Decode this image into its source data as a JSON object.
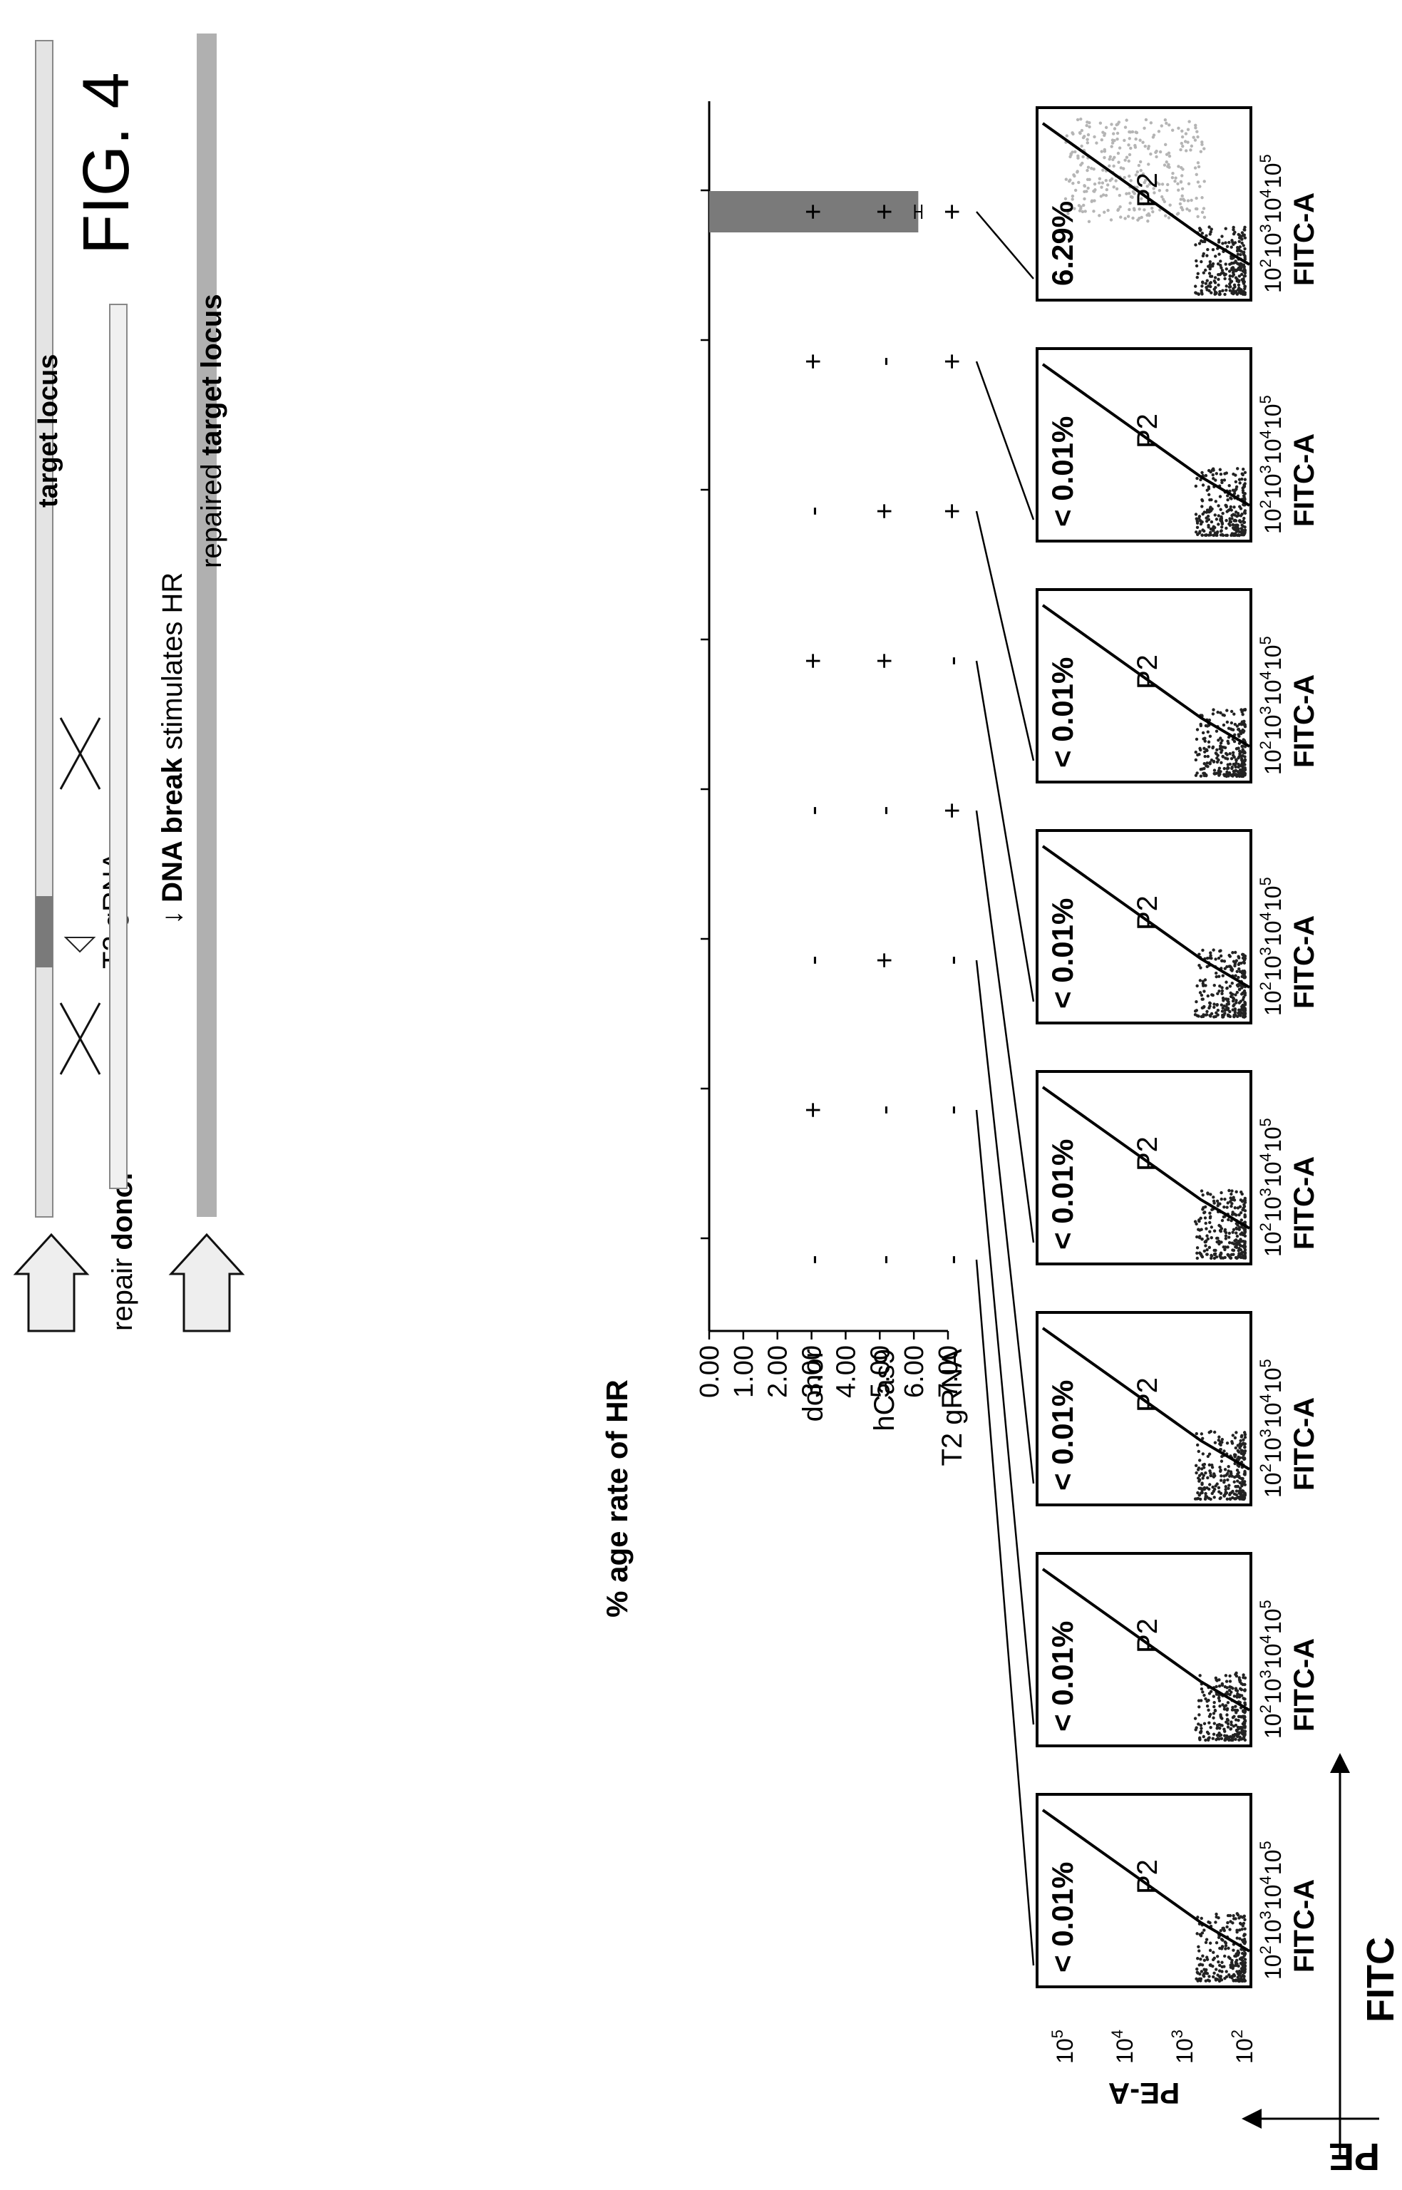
{
  "figure_label": "FIG. 4",
  "schematic": {
    "target_locus": "target locus",
    "repair_prefix": "repair ",
    "repair_bold": "donor",
    "grna_label": "T2 gRNA",
    "break_arrow": "↓",
    "break_bold": "DNA break",
    "break_suffix": " stimulates HR",
    "repaired_prefix": "repaired ",
    "repaired_bold": "target locus"
  },
  "conditions": {
    "row_labels": [
      "donor",
      "hCas9",
      "T2 gRNA"
    ],
    "values": [
      [
        "-",
        "-",
        "-"
      ],
      [
        "+",
        "-",
        "-"
      ],
      [
        "-",
        "+",
        "-"
      ],
      [
        "-",
        "-",
        "+"
      ],
      [
        "+",
        "+",
        "-"
      ],
      [
        "-",
        "+",
        "+"
      ],
      [
        "+",
        "-",
        "+"
      ],
      [
        "+",
        "+",
        "+"
      ]
    ]
  },
  "chart_data": [
    {
      "type": "bar",
      "ylabel": "% age rate of HR",
      "ylim": [
        0,
        7
      ],
      "ticks": [
        "0.00",
        "1.00",
        "2.00",
        "3.00",
        "4.00",
        "5.00",
        "6.00",
        "7.00"
      ],
      "values": [
        0,
        0,
        0,
        0,
        0,
        0,
        0,
        6.13
      ],
      "error": [
        0,
        0,
        0,
        0,
        0,
        0,
        0,
        0.1
      ],
      "bar_color": "#7a7a7a"
    },
    {
      "type": "scatter",
      "plots": 8,
      "gate": "P2",
      "percentages": [
        "< 0.01%",
        "< 0.01%",
        "< 0.01%",
        "< 0.01%",
        "< 0.01%",
        "< 0.01%",
        "< 0.01%",
        "6.29%"
      ],
      "x_axis": "FITC-A",
      "y_axis": "PE-A",
      "tick_base": "10",
      "tick_exponents": [
        "2",
        "3",
        "4",
        "5"
      ],
      "overall_x_axis": "FITC",
      "overall_y_axis": "PE"
    }
  ]
}
